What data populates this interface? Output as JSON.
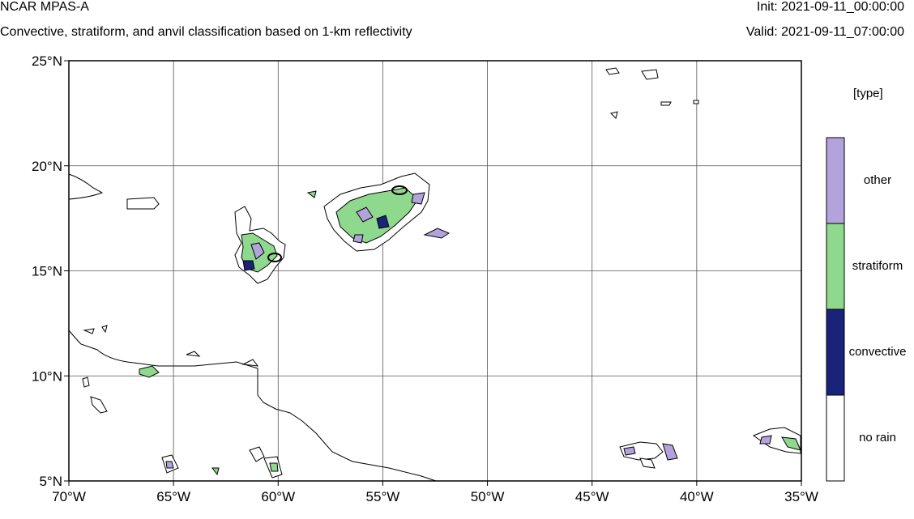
{
  "header": {
    "title": "NCAR MPAS-A",
    "subtitle": "Convective, stratiform, and anvil classification based on 1-km reflectivity",
    "init": "Init: 2021-09-11_00:00:00",
    "valid": "Valid: 2021-09-11_07:00:00"
  },
  "map": {
    "projection": "lat-lon",
    "lon_range": [
      -70,
      -35
    ],
    "lat_range": [
      5,
      25
    ],
    "grid": true,
    "lon_ticks": [
      "70°W",
      "65°W",
      "60°W",
      "55°W",
      "50°W",
      "45°W",
      "40°W",
      "35°W"
    ],
    "lat_ticks": [
      "25°N",
      "20°N",
      "15°N",
      "10°N",
      "5°N"
    ]
  },
  "legend": {
    "title": "[type]",
    "placement": "right",
    "classes": [
      {
        "label": "other",
        "color": "#b3a3dc"
      },
      {
        "label": "stratiform",
        "color": "#8ed98e"
      },
      {
        "label": "convective",
        "color": "#1a237a"
      },
      {
        "label": "no rain",
        "color": "#ffffff"
      }
    ]
  }
}
